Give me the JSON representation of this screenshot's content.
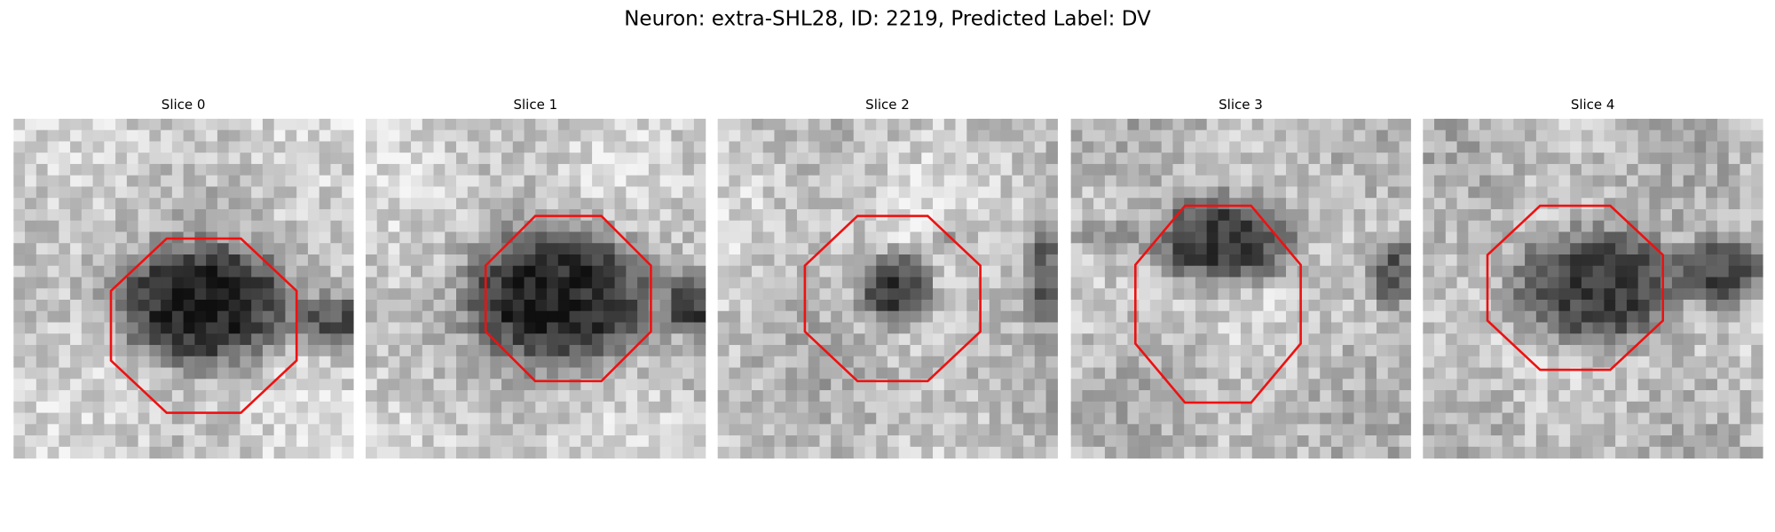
{
  "figure": {
    "title": "Neuron: extra-SHL28, ID: 2219, Predicted Label: DV",
    "panels": [
      {
        "title": "Slice 0"
      },
      {
        "title": "Slice 1"
      },
      {
        "title": "Slice 2"
      },
      {
        "title": "Slice 3"
      },
      {
        "title": "Slice 4"
      }
    ]
  }
}
